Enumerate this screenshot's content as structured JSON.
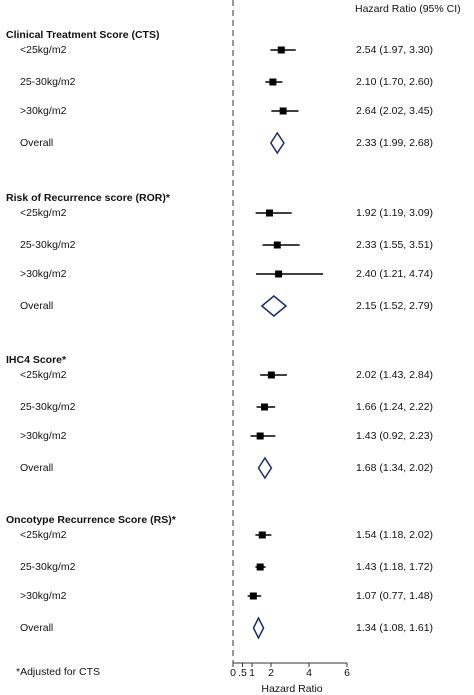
{
  "chart_data": {
    "type": "forest",
    "column_header": "Hazard Ratio (95% CI)",
    "x_label": "Hazard Ratio",
    "footnote": "*Adjusted for CTS",
    "xlim": [
      0,
      6
    ],
    "xticks": [
      0,
      {
        "value": 0.5,
        "label": ".5"
      },
      1,
      2,
      4,
      6
    ],
    "reference": 0,
    "color": "#000000",
    "overall_color": "#1f2a6b",
    "groups": [
      {
        "title": "Clinical Treatment Score (CTS)",
        "rows": [
          {
            "label": "<25kg/m2",
            "value": 2.54,
            "ci": [
              1.97,
              3.3
            ],
            "value_label": "2.54 (1.97, 3.30)"
          },
          {
            "label": "25-30kg/m2",
            "value": 2.1,
            "ci": [
              1.7,
              2.6
            ],
            "value_label": "2.10 (1.70, 2.60)"
          },
          {
            "label": ">30kg/m2",
            "value": 2.64,
            "ci": [
              2.02,
              3.45
            ],
            "value_label": "2.64 (2.02, 3.45)"
          },
          {
            "label": "Overall",
            "value": 2.33,
            "ci": [
              1.99,
              2.68
            ],
            "value_label": "2.33 (1.99, 2.68)",
            "overall": true
          }
        ]
      },
      {
        "title": "Risk of Recurrence score (ROR)*",
        "rows": [
          {
            "label": "<25kg/m2",
            "value": 1.92,
            "ci": [
              1.19,
              3.09
            ],
            "value_label": "1.92 (1.19, 3.09)"
          },
          {
            "label": "25-30kg/m2",
            "value": 2.33,
            "ci": [
              1.55,
              3.51
            ],
            "value_label": "2.33 (1.55, 3.51)"
          },
          {
            "label": ">30kg/m2",
            "value": 2.4,
            "ci": [
              1.21,
              4.74
            ],
            "value_label": "2.40 (1.21, 4.74)"
          },
          {
            "label": "Overall",
            "value": 2.15,
            "ci": [
              1.52,
              2.79
            ],
            "value_label": "2.15 (1.52, 2.79)",
            "overall": true
          }
        ]
      },
      {
        "title": "IHC4 Score*",
        "rows": [
          {
            "label": "<25kg/m2",
            "value": 2.02,
            "ci": [
              1.43,
              2.84
            ],
            "value_label": "2.02 (1.43, 2.84)"
          },
          {
            "label": "25-30kg/m2",
            "value": 1.66,
            "ci": [
              1.24,
              2.22
            ],
            "value_label": "1.66 (1.24, 2.22)"
          },
          {
            "label": ">30kg/m2",
            "value": 1.43,
            "ci": [
              0.92,
              2.23
            ],
            "value_label": "1.43 (0.92, 2.23)"
          },
          {
            "label": "Overall",
            "value": 1.68,
            "ci": [
              1.34,
              2.02
            ],
            "value_label": "1.68 (1.34, 2.02)",
            "overall": true
          }
        ]
      },
      {
        "title": "Oncotype Recurrence Score (RS)*",
        "rows": [
          {
            "label": "<25kg/m2",
            "value": 1.54,
            "ci": [
              1.18,
              2.02
            ],
            "value_label": "1.54 (1.18, 2.02)"
          },
          {
            "label": "25-30kg/m2",
            "value": 1.43,
            "ci": [
              1.18,
              1.72
            ],
            "value_label": "1.43 (1.18, 1.72)"
          },
          {
            "label": ">30kg/m2",
            "value": 1.07,
            "ci": [
              0.77,
              1.48
            ],
            "value_label": "1.07 (0.77, 1.48)"
          },
          {
            "label": "Overall",
            "value": 1.34,
            "ci": [
              1.08,
              1.61
            ],
            "value_label": "1.34 (1.08, 1.61)",
            "overall": true
          }
        ]
      }
    ]
  }
}
